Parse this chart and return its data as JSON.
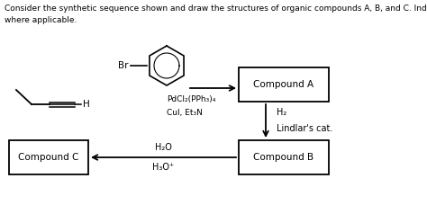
{
  "title_line1": "Consider the synthetic sequence shown and draw the structures of organic compounds A, B, and C. Indicate stereochemistry",
  "title_line2": "where applicable.",
  "title_fontsize": 6.5,
  "background_color": "#ffffff",
  "text_color": "#000000",
  "compound_A_label": "Compound A",
  "compound_B_label": "Compound B",
  "compound_C_label": "Compound C",
  "reagent1_line1": "PdCl₂(PPh₃)₄",
  "reagent1_line2": "Cul, Et₃N",
  "reagent2_line1": "H₂",
  "reagent2_line2": "Lindlar's cat.",
  "reagent3_top": "H₂O",
  "reagent3_bot": "H₃O⁺",
  "figw": 4.74,
  "figh": 2.38,
  "dpi": 100
}
